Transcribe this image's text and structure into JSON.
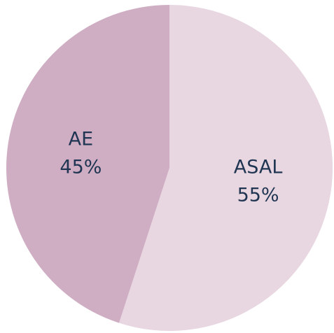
{
  "chart_data": {
    "type": "pie",
    "categories": [
      "ASAL",
      "AE"
    ],
    "values": [
      55,
      45
    ],
    "value_labels": [
      "55%",
      "45%"
    ],
    "colors": [
      "#e8d6e1",
      "#cfaec4"
    ]
  }
}
